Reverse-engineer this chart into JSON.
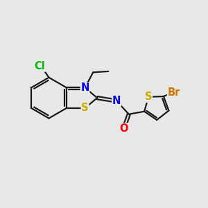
{
  "bg_color": "#e8e8e8",
  "bond_color": "#1a1a1a",
  "atom_colors": {
    "N": "#0000ee",
    "S": "#ccaa00",
    "O": "#ff0000",
    "Cl": "#00bb00",
    "Br": "#cc7700"
  },
  "font_size": 10.5,
  "bond_width": 1.6,
  "figsize": [
    3.0,
    3.0
  ],
  "dpi": 100
}
